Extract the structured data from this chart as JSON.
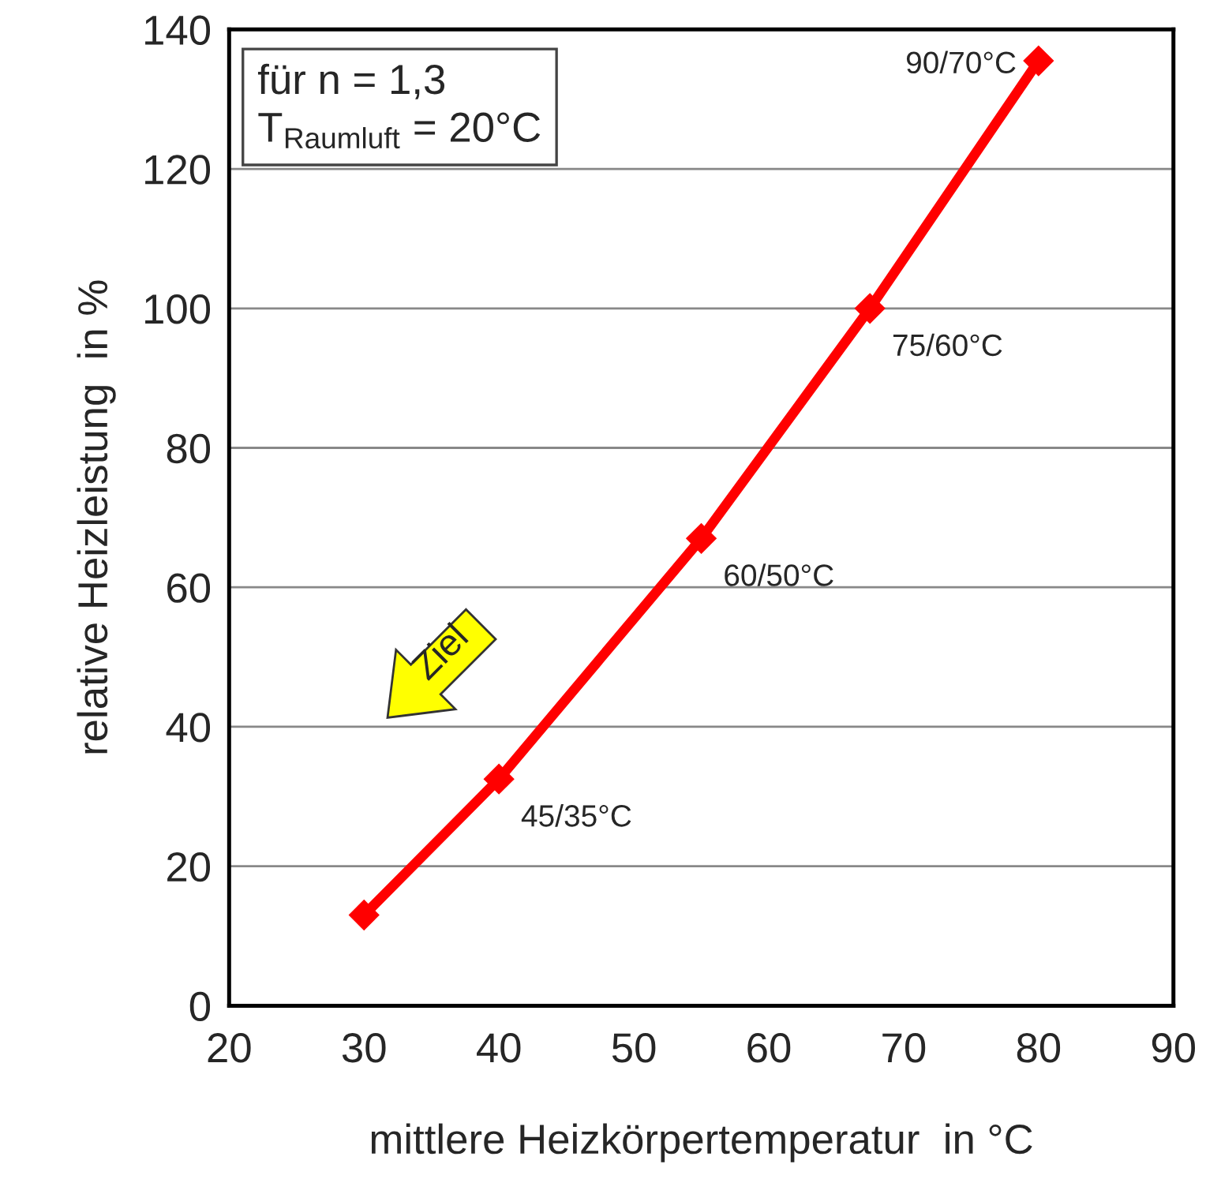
{
  "chart_data": {
    "type": "line",
    "xlabel": "mittlere Heizkörpertemperatur  in °C",
    "ylabel": "relative Heizleistung  in %",
    "x": [
      30,
      40,
      55,
      67.5,
      80
    ],
    "series": [
      {
        "color": "#ff0000",
        "values": [
          13,
          32.5,
          67,
          100,
          135.5
        ]
      }
    ],
    "xlim": [
      20,
      90
    ],
    "xticks": [
      20,
      30,
      40,
      50,
      60,
      70,
      80,
      90
    ],
    "ylim": [
      0,
      140
    ],
    "yticks": [
      0,
      20,
      40,
      60,
      80,
      100,
      120,
      140
    ],
    "grid": "y",
    "marker": "diamond",
    "line_style": "solid",
    "annotations": [
      "für n = 1,3\nT$_{Raumluft}$ = 20°C",
      "Ziel",
      {
        "text": "45/35°C",
        "x": 40,
        "y": 32.5
      },
      {
        "text": "60/50°C",
        "x": 55,
        "y": 67
      },
      {
        "text": "75/60°C",
        "x": 67.5,
        "y": 100
      },
      {
        "text": "90/70°C",
        "x": 80,
        "y": 135.5
      }
    ]
  }
}
